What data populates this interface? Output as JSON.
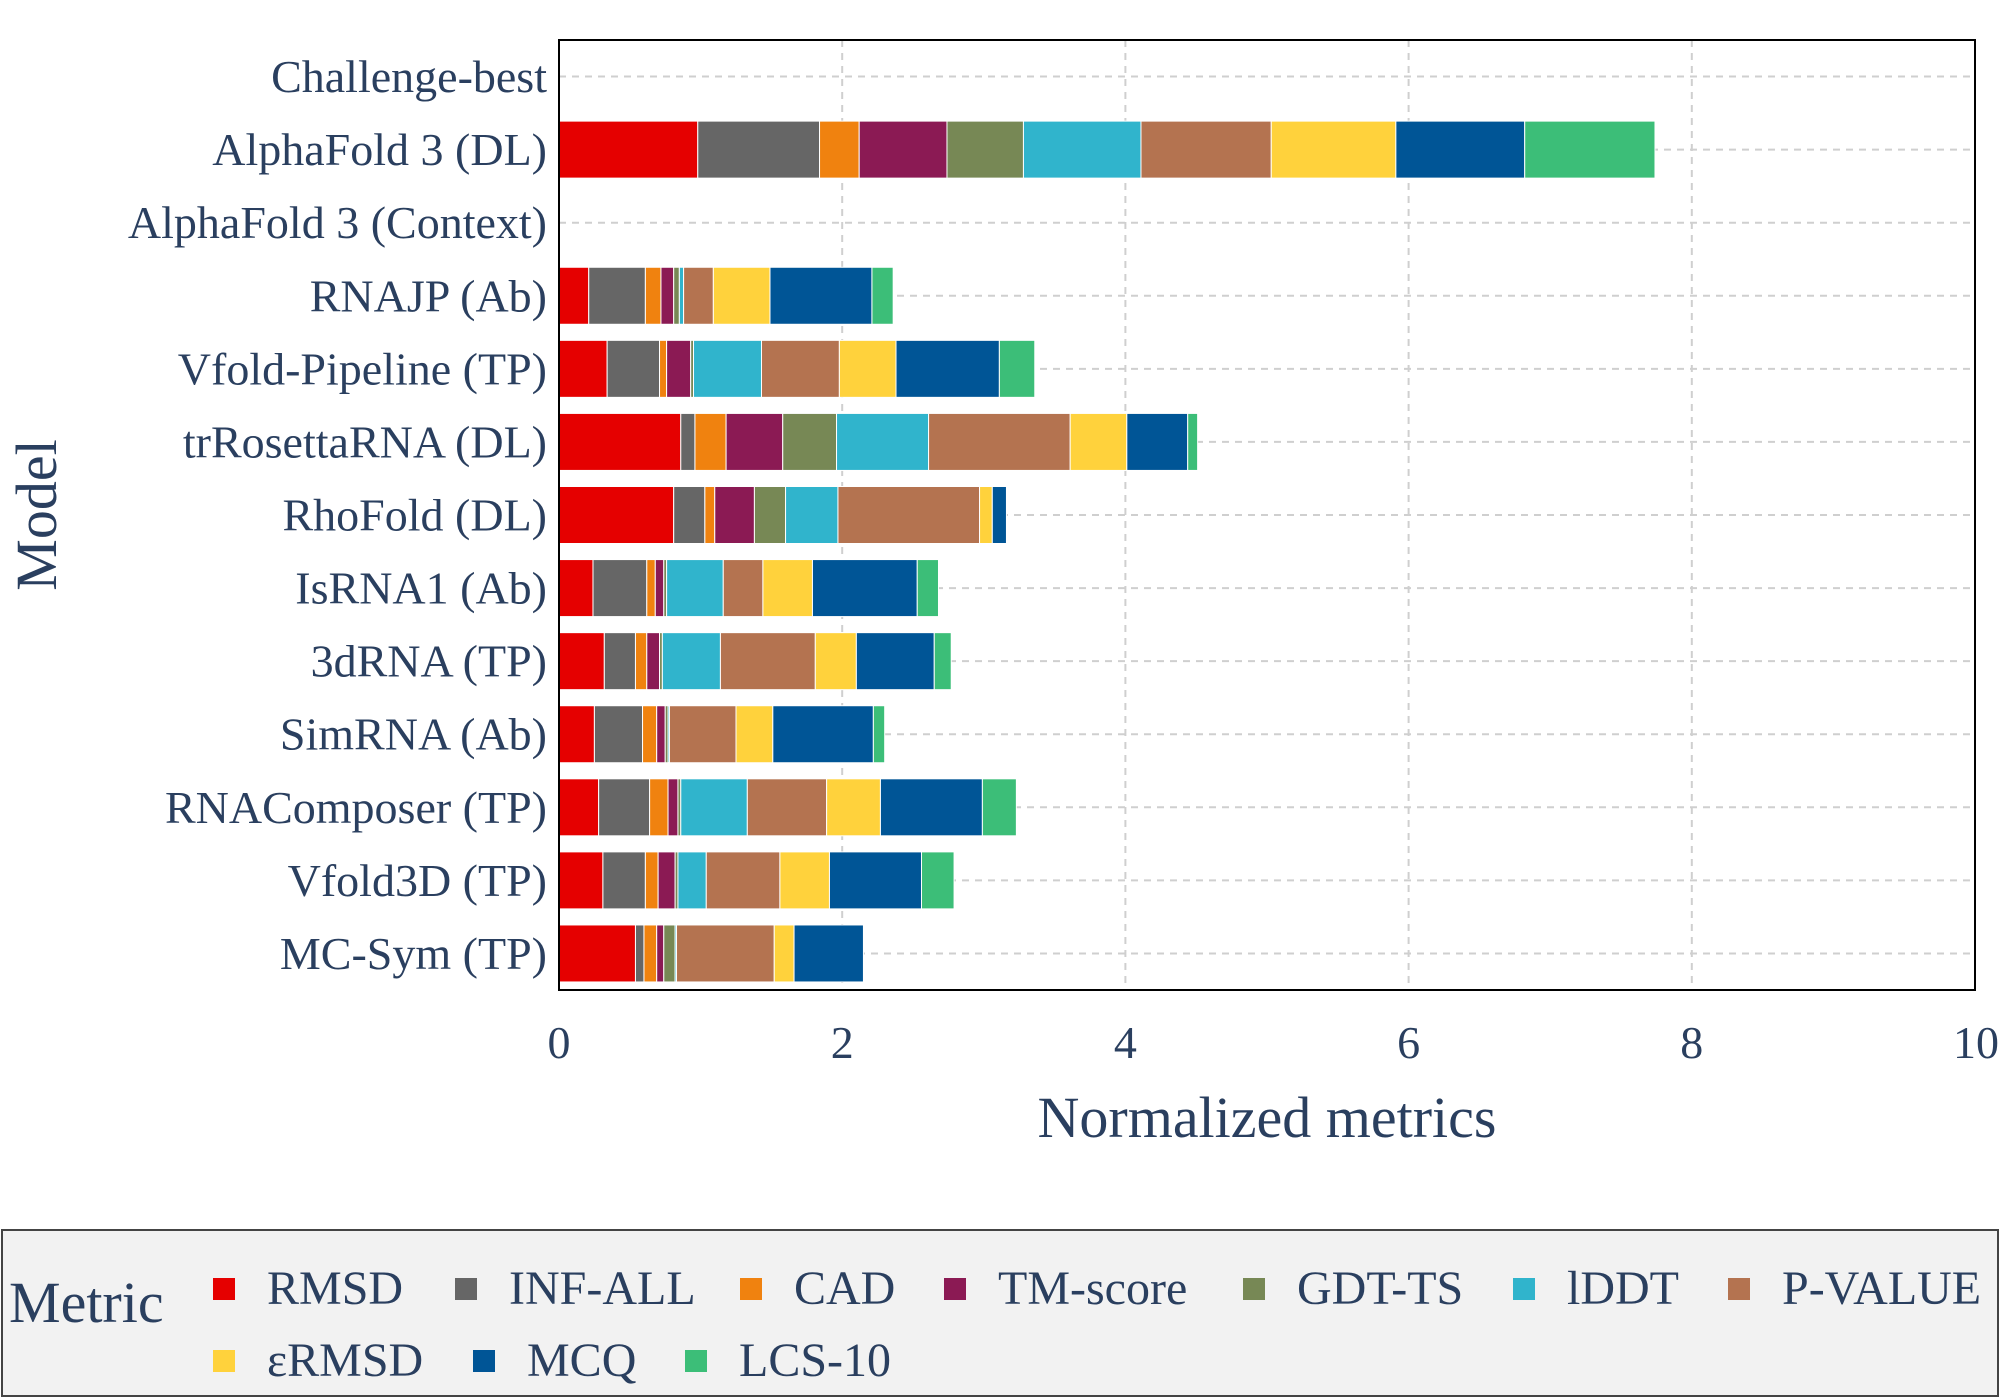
{
  "chart_data": {
    "type": "bar",
    "orientation": "horizontal",
    "stacked": true,
    "xlabel": "Normalized metrics",
    "ylabel": "Model",
    "xlim": [
      0,
      10
    ],
    "xticks": [
      "0",
      "2",
      "4",
      "6",
      "8",
      "10"
    ],
    "grid": true,
    "legend_title": "Metric",
    "legend_position": "bottom",
    "categories": [
      "Challenge-best",
      "AlphaFold 3 (DL)",
      "AlphaFold 3 (Context)",
      "RNAJP (Ab)",
      "Vfold-Pipeline (TP)",
      "trRosettaRNA (DL)",
      "RhoFold (DL)",
      "IsRNA1 (Ab)",
      "3dRNA (TP)",
      "SimRNA (Ab)",
      "RNAComposer (TP)",
      "Vfold3D (TP)",
      "MC-Sym (TP)"
    ],
    "series": [
      {
        "name": "RMSD",
        "color": "#e50000",
        "values": [
          0,
          0.98,
          0,
          0.21,
          0.34,
          0.86,
          0.81,
          0.24,
          0.32,
          0.25,
          0.28,
          0.31,
          0.54
        ]
      },
      {
        "name": "INF-ALL",
        "color": "#666666",
        "values": [
          0,
          0.86,
          0,
          0.4,
          0.37,
          0.1,
          0.22,
          0.38,
          0.22,
          0.34,
          0.36,
          0.3,
          0.06
        ]
      },
      {
        "name": "CAD",
        "color": "#f0820f",
        "values": [
          0,
          0.28,
          0,
          0.11,
          0.05,
          0.22,
          0.07,
          0.06,
          0.08,
          0.1,
          0.13,
          0.09,
          0.09
        ]
      },
      {
        "name": "TM-score",
        "color": "#8b1a54",
        "values": [
          0,
          0.62,
          0,
          0.09,
          0.17,
          0.4,
          0.28,
          0.06,
          0.09,
          0.06,
          0.07,
          0.12,
          0.05
        ]
      },
      {
        "name": "GDT-TS",
        "color": "#778855",
        "values": [
          0,
          0.54,
          0,
          0.04,
          0.02,
          0.38,
          0.22,
          0.02,
          0.02,
          0.02,
          0.02,
          0.02,
          0.08
        ]
      },
      {
        "name": "lDDT",
        "color": "#30b4cc",
        "values": [
          0,
          0.83,
          0,
          0.03,
          0.48,
          0.65,
          0.37,
          0.4,
          0.41,
          0.01,
          0.47,
          0.2,
          0.01
        ]
      },
      {
        "name": "P-VALUE",
        "color": "#b47350",
        "values": [
          0,
          0.92,
          0,
          0.21,
          0.55,
          1.0,
          1.0,
          0.28,
          0.67,
          0.47,
          0.56,
          0.52,
          0.69
        ]
      },
      {
        "name": "εRMSD",
        "color": "#ffd23c",
        "values": [
          0,
          0.88,
          0,
          0.4,
          0.4,
          0.4,
          0.09,
          0.35,
          0.29,
          0.26,
          0.38,
          0.35,
          0.14
        ]
      },
      {
        "name": "MCQ",
        "color": "#005596",
        "values": [
          0,
          0.91,
          0,
          0.72,
          0.73,
          0.43,
          0.1,
          0.74,
          0.55,
          0.71,
          0.72,
          0.65,
          0.49
        ]
      },
      {
        "name": "LCS-10",
        "color": "#3cbe78",
        "values": [
          0,
          0.92,
          0,
          0.15,
          0.25,
          0.07,
          0,
          0.15,
          0.12,
          0.08,
          0.24,
          0.23,
          0
        ]
      }
    ]
  }
}
